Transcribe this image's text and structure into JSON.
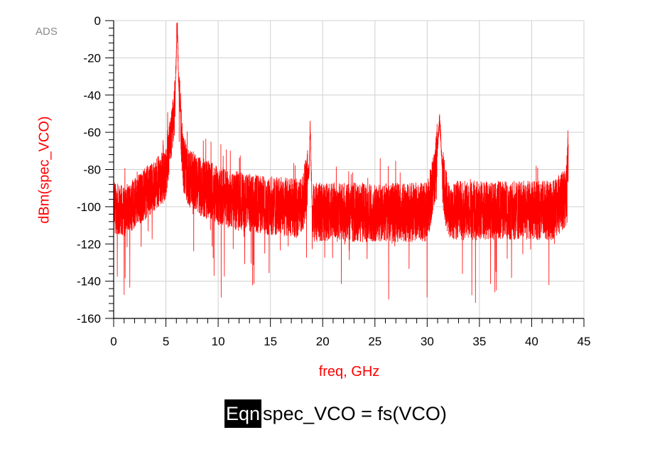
{
  "app": {
    "name": "ADS"
  },
  "equation": {
    "tag": "Eqn",
    "text": "spec_VCO = fs(VCO)"
  },
  "chart_data": {
    "type": "line",
    "xlabel": "freq, GHz",
    "ylabel": "dBm(spec_VCO)",
    "xlim": [
      0,
      45
    ],
    "ylim": [
      -160,
      0
    ],
    "x_ticks": [
      0,
      5,
      10,
      15,
      20,
      25,
      30,
      35,
      40,
      45
    ],
    "y_ticks": [
      0,
      -20,
      -40,
      -60,
      -80,
      -100,
      -120,
      -140,
      -160
    ],
    "grid": true,
    "series_color": "#ff0000",
    "series": [
      {
        "x": [
          0,
          1,
          2,
          3,
          4,
          5,
          5.8,
          6.1,
          6.2,
          6.3,
          6.6,
          7,
          8,
          9,
          10,
          12,
          14,
          16,
          18,
          18.7,
          18.8,
          19,
          20,
          22,
          24,
          26,
          28,
          30,
          30.8,
          31.2,
          31.5,
          32,
          34,
          36,
          38,
          40,
          42,
          43.3,
          43.5
        ],
        "y": [
          -100,
          -103,
          -98,
          -93,
          -88,
          -83,
          -50,
          -3,
          -30,
          -40,
          -75,
          -83,
          -88,
          -91,
          -94,
          -97,
          -99,
          -100,
          -101,
          -80,
          -56,
          -103,
          -103,
          -103,
          -103,
          -103,
          -103,
          -103,
          -82,
          -52,
          -85,
          -102,
          -102,
          -102,
          -102,
          -102,
          -102,
          -95,
          -70
        ]
      }
    ]
  }
}
